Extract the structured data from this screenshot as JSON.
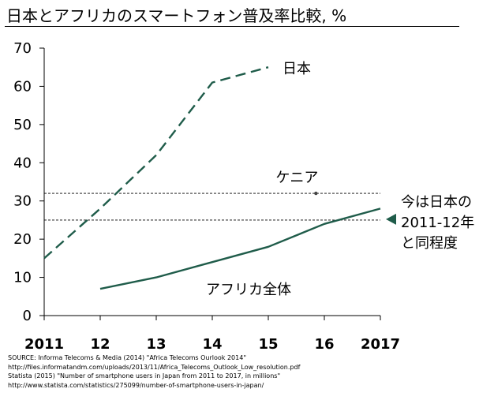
{
  "title": "日本とアフリカのスマートフォン普及率比較, %",
  "chart_data": {
    "type": "line",
    "title": "日本とアフリカのスマートフォン普及率比較, %",
    "x": [
      2011,
      2012,
      2013,
      2014,
      2015,
      2016,
      2017
    ],
    "x_tick_labels": [
      "2011",
      "12",
      "13",
      "14",
      "15",
      "16",
      "2017"
    ],
    "ylim": [
      0,
      70
    ],
    "y_ticks": [
      0,
      10,
      20,
      30,
      40,
      50,
      60,
      70
    ],
    "grid": false,
    "series": [
      {
        "name": "日本",
        "style": "dashed",
        "color": "#1f5c4a",
        "x": [
          2011,
          2012,
          2013,
          2014,
          2015
        ],
        "values": [
          15,
          28,
          42,
          61,
          65
        ]
      },
      {
        "name": "アフリカ全体",
        "style": "solid",
        "color": "#1f5c4a",
        "x": [
          2012,
          2013,
          2014,
          2015,
          2016,
          2017
        ],
        "values": [
          7,
          10,
          14,
          18,
          24,
          28
        ]
      }
    ],
    "reference_lines": [
      {
        "y": 32,
        "style": "dotted"
      },
      {
        "y": 25,
        "style": "dotted"
      }
    ],
    "points": [
      {
        "name": "ケニア",
        "x": 2015.85,
        "y": 32
      }
    ],
    "annotations": {
      "japan_label": "日本",
      "kenya_label": "ケニア",
      "africa_label": "アフリカ全体",
      "side_note": [
        "今は日本の",
        "2011-12年",
        "と同程度"
      ],
      "marker_color": "#1f5c4a"
    }
  },
  "sources": [
    "SOURCE:   Informa Telecoms & Media (2014) \"Africa Telecoms Ourlook  2014\"",
    "http://files.informatandm.com/uploads/2013/11/Africa_Telecoms_Outlook_Low_resolution.pdf",
    "Statista (2015) \"Number of smartphone users  in Japan from 2011 to 2017, in millions\"",
    "http://www.statista.com/statistics/275099/number-of-smartphone-users-in-japan/"
  ]
}
